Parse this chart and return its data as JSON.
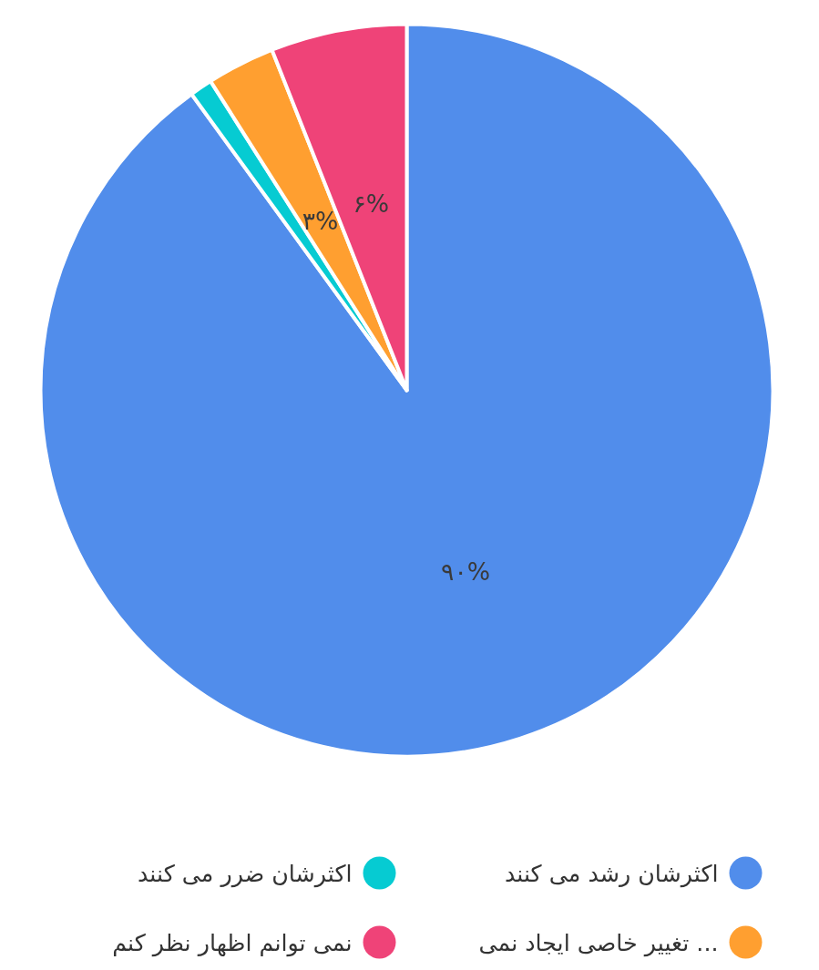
{
  "chart_data": {
    "type": "pie",
    "categories": [
      "اکثرشان رشد می کنند",
      "اکثرشان ضرر می کنند",
      "تغییر خاصی ایجاد نمی ...",
      "نمی توانم اظهار نظر کنم"
    ],
    "values": [
      90,
      1,
      3,
      6
    ],
    "colors": [
      "#518deb",
      "#06cbd2",
      "#ff9f30",
      "#ef4378"
    ],
    "value_labels": [
      "۹۰%",
      null,
      "۳%",
      "۶%"
    ],
    "legend": "bottom"
  }
}
